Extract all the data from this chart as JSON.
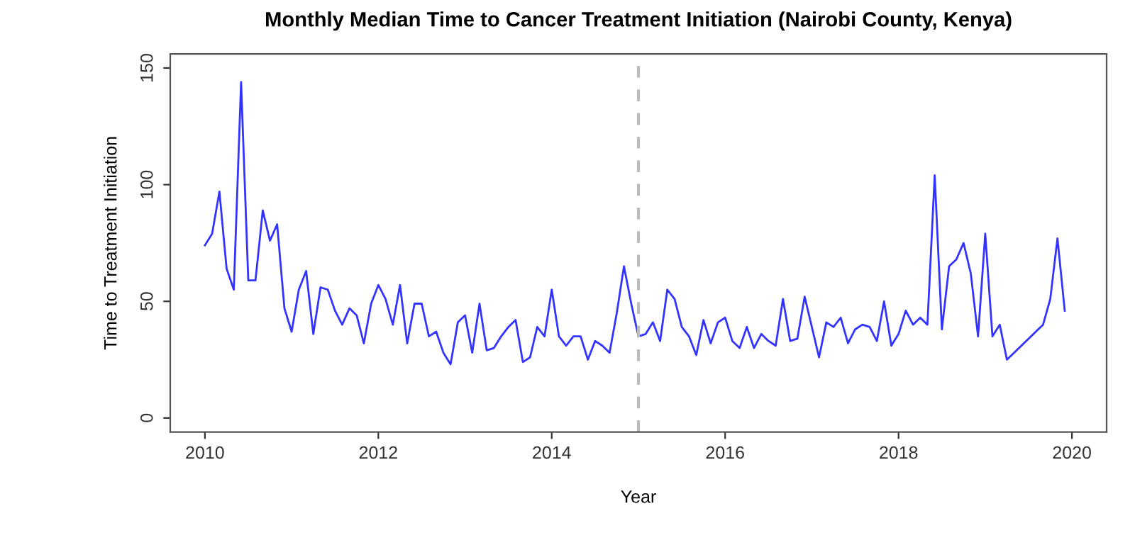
{
  "chart_data": {
    "type": "line",
    "title": "Monthly Median Time to Cancer Treatment Initiation (Nairobi County, Kenya)",
    "xlabel": "Year",
    "ylabel": "Time to Treatment Initiation",
    "x": [
      2010,
      2010.083,
      2010.167,
      2010.25,
      2010.333,
      2010.417,
      2010.5,
      2010.583,
      2010.667,
      2010.75,
      2010.833,
      2010.917,
      2011,
      2011.083,
      2011.167,
      2011.25,
      2011.333,
      2011.417,
      2011.5,
      2011.583,
      2011.667,
      2011.75,
      2011.833,
      2011.917,
      2012,
      2012.083,
      2012.167,
      2012.25,
      2012.333,
      2012.417,
      2012.5,
      2012.583,
      2012.667,
      2012.75,
      2012.833,
      2012.917,
      2013,
      2013.083,
      2013.167,
      2013.25,
      2013.333,
      2013.417,
      2013.5,
      2013.583,
      2013.667,
      2013.75,
      2013.833,
      2013.917,
      2014,
      2014.083,
      2014.167,
      2014.25,
      2014.333,
      2014.417,
      2014.5,
      2014.583,
      2014.667,
      2014.75,
      2014.833,
      2014.917,
      2015,
      2015.083,
      2015.167,
      2015.25,
      2015.333,
      2015.417,
      2015.5,
      2015.583,
      2015.667,
      2015.75,
      2015.833,
      2015.917,
      2016,
      2016.083,
      2016.167,
      2016.25,
      2016.333,
      2016.417,
      2016.5,
      2016.583,
      2016.667,
      2016.75,
      2016.833,
      2016.917,
      2017,
      2017.083,
      2017.167,
      2017.25,
      2017.333,
      2017.417,
      2017.5,
      2017.583,
      2017.667,
      2017.75,
      2017.833,
      2017.917,
      2018,
      2018.083,
      2018.167,
      2018.25,
      2018.333,
      2018.417,
      2018.5,
      2018.583,
      2018.667,
      2018.75,
      2018.833,
      2018.917,
      2019,
      2019.083,
      2019.167,
      2019.25,
      2019.333,
      2019.417,
      2019.5,
      2019.583,
      2019.667,
      2019.75,
      2019.833,
      2019.917
    ],
    "series": [
      {
        "color": "#3333ff",
        "values": [
          74,
          79,
          97,
          64,
          55,
          144,
          59,
          59,
          89,
          76,
          83,
          47,
          37,
          55,
          63,
          36,
          56,
          55,
          46,
          40,
          47,
          44,
          32,
          49,
          57,
          51,
          40,
          57,
          32,
          49,
          49,
          35,
          37,
          28,
          23,
          41,
          44,
          28,
          49,
          29,
          30,
          35,
          39,
          42,
          24,
          26,
          39,
          35,
          55,
          35,
          31,
          35,
          35,
          25,
          33,
          31,
          28,
          45,
          65,
          49,
          35,
          36,
          41,
          33,
          55,
          51,
          39,
          35,
          27,
          42,
          32,
          41,
          43,
          33,
          30,
          39,
          30,
          36,
          33,
          31,
          51,
          33,
          34,
          52,
          39,
          26,
          41,
          39,
          43,
          32,
          38,
          40,
          39,
          33,
          50,
          31,
          36,
          46,
          40,
          43,
          40,
          104,
          38,
          65,
          68,
          75,
          62,
          35,
          79,
          35,
          40,
          25,
          28,
          31,
          34,
          37,
          40,
          51,
          77,
          46
        ]
      }
    ],
    "xlim": [
      2009.6,
      2020.4
    ],
    "xticks": [
      2010,
      2012,
      2014,
      2016,
      2018,
      2020
    ],
    "ylim": [
      -6,
      156
    ],
    "yticks": [
      0,
      50,
      100,
      150
    ],
    "ref_lines": [
      {
        "axis": "x",
        "value": 2015,
        "color": "#bbbbbb",
        "line_style": "dashed"
      }
    ],
    "grid": false,
    "legend": false,
    "line_style": "solid",
    "marker": "none"
  }
}
